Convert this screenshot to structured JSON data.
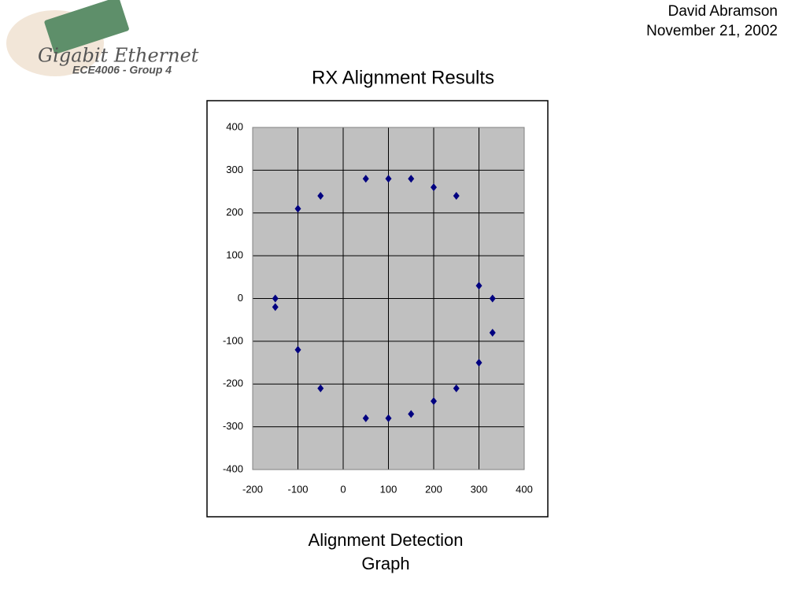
{
  "slide": {
    "author": "David Abramson",
    "date": "November 21, 2002",
    "logo_title": "Gigabit Ethernet",
    "logo_subtitle": "ECE4006 - Group 4",
    "caption": [
      "Alignment Detection",
      "Graph"
    ]
  },
  "chart_data": {
    "type": "scatter",
    "title": "RX Alignment Results",
    "x": [
      -150,
      -150,
      -100,
      -50,
      50,
      100,
      150,
      200,
      250,
      300,
      330,
      330,
      300,
      250,
      200,
      150,
      100,
      50,
      -50,
      -100
    ],
    "values": [
      0,
      -20,
      210,
      240,
      280,
      280,
      280,
      260,
      240,
      30,
      0,
      -80,
      -150,
      -210,
      -240,
      -270,
      -280,
      -280,
      -210,
      -120
    ],
    "color": "#000080",
    "xlim": [
      -200,
      400
    ],
    "xticks": [
      -200,
      -100,
      0,
      100,
      200,
      300,
      400
    ],
    "ylim": [
      -400,
      400
    ],
    "yticks": [
      -400,
      -300,
      -200,
      -100,
      0,
      100,
      200,
      300,
      400
    ],
    "grid": true
  }
}
